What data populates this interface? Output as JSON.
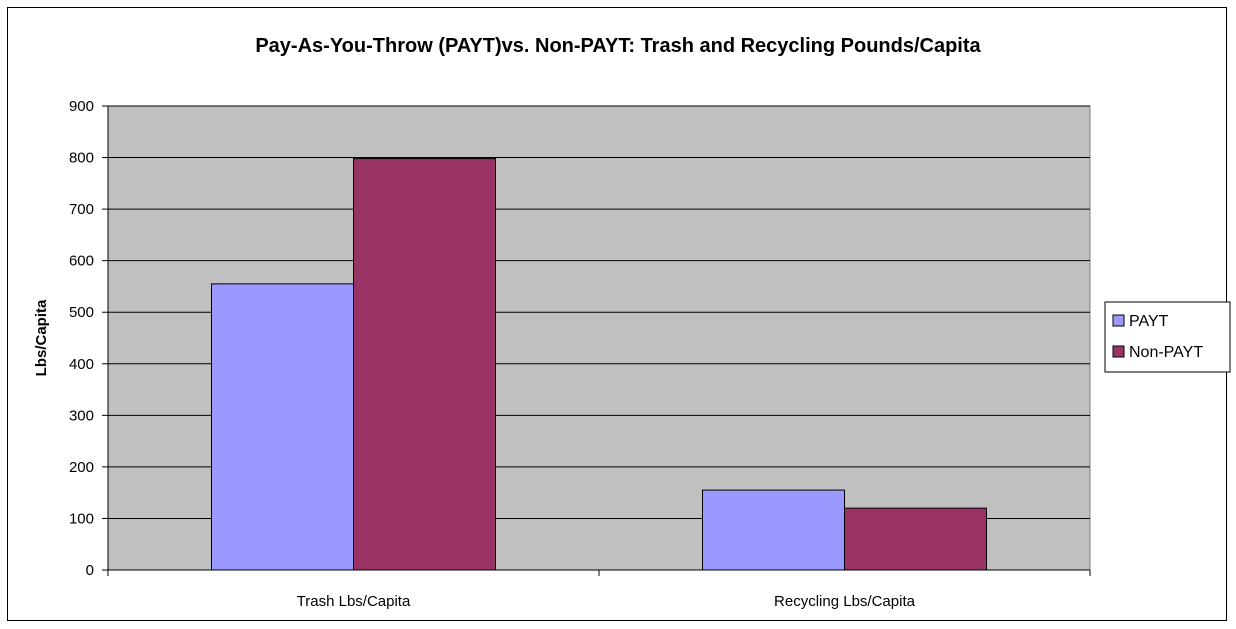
{
  "chart_data": {
    "type": "bar",
    "title": "Pay-As-You-Throw (PAYT)vs. Non-PAYT:  Trash and Recycling Pounds/Capita",
    "xlabel": "",
    "ylabel": "Lbs/Capita",
    "categories": [
      "Trash Lbs/Capita",
      "Recycling Lbs/Capita"
    ],
    "series": [
      {
        "name": "PAYT",
        "values": [
          555,
          155
        ],
        "color": "#9999ff"
      },
      {
        "name": "Non-PAYT",
        "values": [
          798,
          120
        ],
        "color": "#993366"
      }
    ],
    "ylim": [
      0,
      900
    ],
    "yticks": [
      "0",
      "100",
      "200",
      "300",
      "400",
      "500",
      "600",
      "700",
      "800",
      "900"
    ],
    "grid": true,
    "plot_background": "#c0c0c0",
    "legend_position": "right"
  }
}
